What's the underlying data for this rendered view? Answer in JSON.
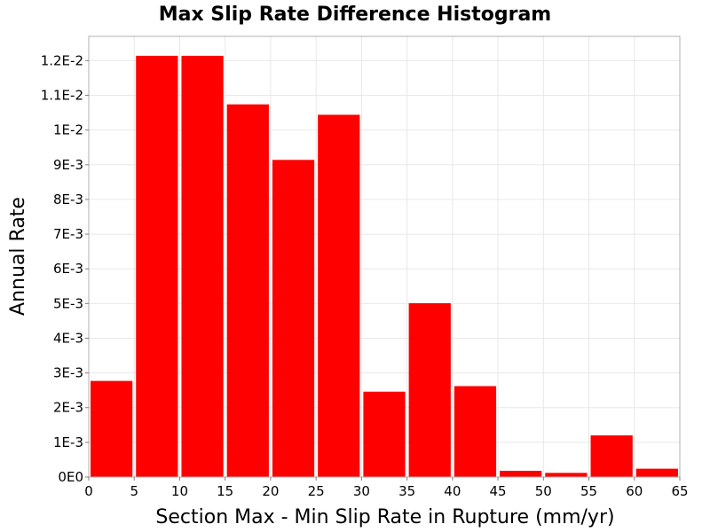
{
  "chart_data": {
    "type": "bar",
    "title": "Max Slip Rate Difference Histogram",
    "xlabel": "Section Max - Min Slip Rate in Rupture (mm/yr)",
    "ylabel": "Annual Rate",
    "bin_width": 5,
    "x_bin_starts": [
      0,
      5,
      10,
      15,
      20,
      25,
      30,
      35,
      40,
      45,
      50,
      55,
      60
    ],
    "values": [
      0.00277,
      0.01214,
      0.01214,
      0.01074,
      0.00914,
      0.01044,
      0.00246,
      0.00501,
      0.00262,
      0.00018,
      0.00012,
      0.0012,
      0.00024
    ],
    "xlim": [
      0,
      65
    ],
    "ylim": [
      0,
      0.0127
    ],
    "x_ticks": [
      0,
      5,
      10,
      15,
      20,
      25,
      30,
      35,
      40,
      45,
      50,
      55,
      60,
      65
    ],
    "x_tick_labels": [
      "0",
      "5",
      "10",
      "15",
      "20",
      "25",
      "30",
      "35",
      "40",
      "45",
      "50",
      "55",
      "60",
      "65"
    ],
    "y_ticks": [
      0,
      0.001,
      0.002,
      0.003,
      0.004,
      0.005,
      0.006,
      0.007,
      0.008,
      0.009,
      0.01,
      0.011,
      0.012
    ],
    "y_tick_labels": [
      "0E0",
      "1E-3",
      "2E-3",
      "3E-3",
      "4E-3",
      "5E-3",
      "6E-3",
      "7E-3",
      "8E-3",
      "9E-3",
      "1E-2",
      "1.1E-2",
      "1.2E-2"
    ],
    "grid": true,
    "colors": {
      "bar": "#ff0000",
      "grid": "#e8e8e8",
      "frame": "#b0b0b0"
    }
  }
}
